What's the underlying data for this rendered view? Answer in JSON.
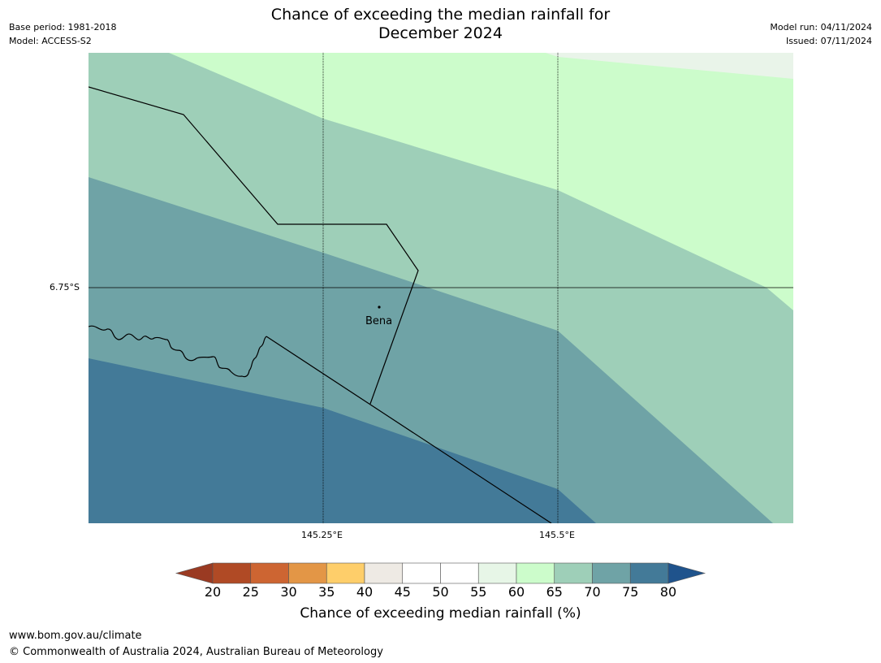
{
  "header": {
    "title_line1": "Chance of exceeding the median rainfall for",
    "title_line2": "December 2024",
    "base_period": "Base period: 1981-2018",
    "model": "Model: ACCESS-S2",
    "model_run": "Model run: 04/11/2024",
    "issued": "Issued: 07/11/2024"
  },
  "map": {
    "lat_label": "6.75°S",
    "lon_labels": [
      "145.25°E",
      "145.5°E"
    ],
    "place": {
      "name": "Bena"
    }
  },
  "colorbar": {
    "title": "Chance of exceeding median rainfall (%)",
    "ticks": [
      "20",
      "25",
      "30",
      "35",
      "40",
      "45",
      "50",
      "55",
      "60",
      "65",
      "70",
      "75",
      "80"
    ],
    "colors": [
      "#b04a25",
      "#cd6532",
      "#e39646",
      "#fece6a",
      "#eeeae4",
      "#ffffff",
      "#ffffff",
      "#e7f6e7",
      "#ccfccb",
      "#9ecfb8",
      "#6fa3a6",
      "#437a98"
    ],
    "under_color": "#9a3a22",
    "over_color": "#1f538c"
  },
  "footer": {
    "url": "www.bom.gov.au/climate",
    "copyright": "© Commonwealth of Australia 2024, Australian Bureau of Meteorology"
  }
}
